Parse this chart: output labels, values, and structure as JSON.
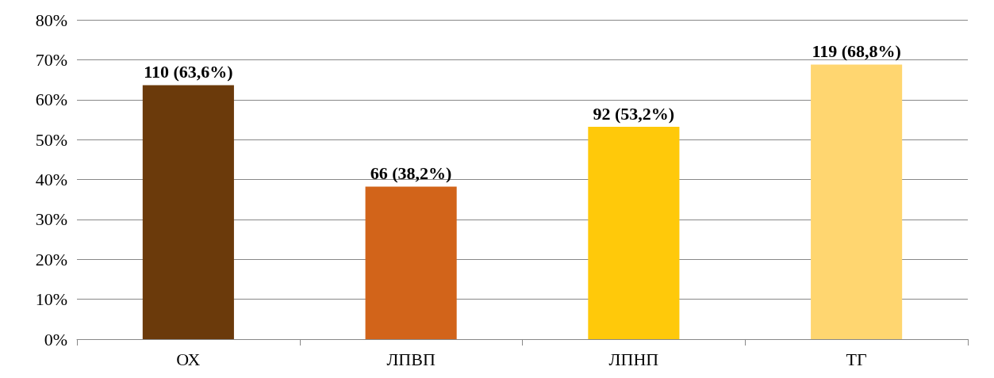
{
  "chart_data": {
    "type": "bar",
    "categories": [
      "ОХ",
      "ЛПВП",
      "ЛПНП",
      "ТГ"
    ],
    "values": [
      63.6,
      38.2,
      53.2,
      68.8
    ],
    "value_labels": [
      "110 (63,6%)",
      "66 (38,2%)",
      "92 (53,2%)",
      "119 (68,8%)"
    ],
    "colors": [
      "#6b3a0b",
      "#d2641a",
      "#ffc90a",
      "#ffd670"
    ],
    "ylim": [
      0,
      80
    ],
    "yticks": [
      {
        "value": 0,
        "label": "0%"
      },
      {
        "value": 10,
        "label": "10%"
      },
      {
        "value": 20,
        "label": "20%"
      },
      {
        "value": 30,
        "label": "30%"
      },
      {
        "value": 40,
        "label": "40%"
      },
      {
        "value": 50,
        "label": "50%"
      },
      {
        "value": 60,
        "label": "60%"
      },
      {
        "value": 70,
        "label": "70%"
      },
      {
        "value": 80,
        "label": "80%"
      }
    ],
    "grid": "y"
  }
}
